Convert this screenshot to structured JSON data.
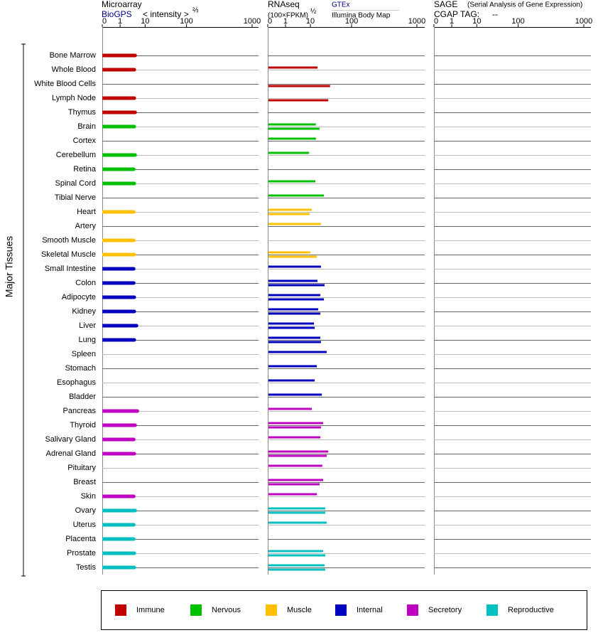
{
  "chart_data": {
    "type": "bar",
    "axis_label": "Major Tissues",
    "categories": [
      "Bone Marrow",
      "Whole Blood",
      "White Blood Cells",
      "Lymph Node",
      "Thymus",
      "Brain",
      "Cortex",
      "Cerebellum",
      "Retina",
      "Spinal Cord",
      "Tibial Nerve",
      "Heart",
      "Artery",
      "Smooth Muscle",
      "Skeletal Muscle",
      "Small Intestine",
      "Colon",
      "Adipocyte",
      "Kidney",
      "Liver",
      "Lung",
      "Spleen",
      "Stomach",
      "Esophagus",
      "Bladder",
      "Pancreas",
      "Thyroid",
      "Salivary Gland",
      "Adrenal Gland",
      "Pituitary",
      "Breast",
      "Skin",
      "Ovary",
      "Uterus",
      "Placenta",
      "Prostate",
      "Testis"
    ],
    "groups": [
      {
        "name": "Immune",
        "color": "#c00000",
        "categories": [
          "Bone Marrow",
          "Whole Blood",
          "White Blood Cells",
          "Lymph Node",
          "Thymus"
        ]
      },
      {
        "name": "Nervous",
        "color": "#00c000",
        "categories": [
          "Brain",
          "Cortex",
          "Cerebellum",
          "Retina",
          "Spinal Cord",
          "Tibial Nerve"
        ]
      },
      {
        "name": "Muscle",
        "color": "#ffc000",
        "categories": [
          "Heart",
          "Artery",
          "Smooth Muscle",
          "Skeletal Muscle"
        ]
      },
      {
        "name": "Internal",
        "color": "#0000c0",
        "categories": [
          "Small Intestine",
          "Colon",
          "Adipocyte",
          "Kidney",
          "Liver",
          "Lung",
          "Spleen",
          "Stomach",
          "Esophagus",
          "Bladder"
        ]
      },
      {
        "name": "Secretory",
        "color": "#c000c0",
        "categories": [
          "Pancreas",
          "Thyroid",
          "Salivary Gland",
          "Adrenal Gland",
          "Pituitary",
          "Breast",
          "Skin"
        ]
      },
      {
        "name": "Reproductive",
        "color": "#00c0c0",
        "categories": [
          "Ovary",
          "Uterus",
          "Placenta",
          "Prostate",
          "Testis"
        ]
      }
    ],
    "panels": [
      {
        "title": "Microarray",
        "unit": "< intensity >",
        "unit_power": "⅔",
        "xlim": [
          0,
          1000
        ],
        "xticks": [
          0,
          1,
          10,
          100,
          1000
        ],
        "series": [
          {
            "name": "BioGPS",
            "values": [
              6.4,
              6.1,
              null,
              6.1,
              6.4,
              6.1,
              null,
              6.4,
              5.9,
              6.1,
              null,
              5.9,
              null,
              5.9,
              6.1,
              5.9,
              5.9,
              6.1,
              6.1,
              6.9,
              6.1,
              null,
              null,
              null,
              null,
              7.2,
              6.4,
              5.9,
              6.1,
              null,
              null,
              5.9,
              6.4,
              5.9,
              5.9,
              6.1,
              6.1
            ]
          }
        ]
      },
      {
        "title": "RNAseq",
        "unit": "(100×FPKM)",
        "unit_power": "½",
        "xlim": [
          0,
          1000
        ],
        "xticks": [
          0,
          1,
          10,
          100,
          1000
        ],
        "series": [
          {
            "name": "GTEx",
            "values": [
              null,
              25.5,
              null,
              null,
              null,
              22,
              22,
              9.5,
              null,
              21,
              39.5,
              13,
              33,
              null,
              10,
              33,
              25.5,
              31.7,
              27,
              17.8,
              31.7,
              45.7,
              24,
              19.3,
              35,
              13,
              38,
              31.7,
              49,
              36,
              38,
              24,
              42.5,
              45.7,
              null,
              38,
              41
            ]
          },
          {
            "name": "Illumina Body Map",
            "values": [
              null,
              null,
              53,
              49,
              null,
              30,
              null,
              null,
              null,
              null,
              null,
              9.7,
              null,
              null,
              24,
              null,
              41,
              39.5,
              31.7,
              19.3,
              33,
              null,
              null,
              null,
              null,
              null,
              33,
              null,
              45.7,
              null,
              30,
              null,
              42.5,
              null,
              null,
              42.5,
              42.5
            ]
          }
        ]
      },
      {
        "title": "SAGE",
        "subtitle": "(Serial Analysis of Gene Expression)",
        "tag_label": "CGAP TAG:",
        "tag": "--",
        "xlim": [
          0,
          1000
        ],
        "xticks": [
          0,
          1,
          10,
          100,
          1000
        ],
        "series": []
      }
    ]
  }
}
